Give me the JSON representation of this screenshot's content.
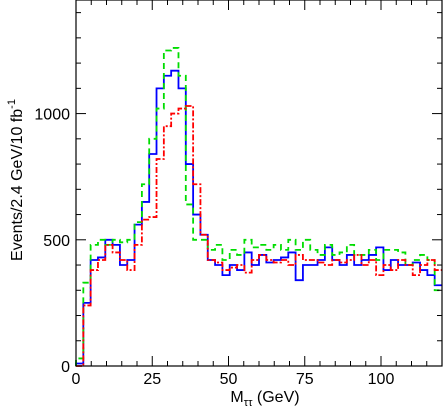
{
  "chart_data": {
    "type": "line",
    "step": true,
    "xlabel": "M",
    "xlabel_sub": "ττ",
    "xlabel_unit": " (GeV)",
    "ylabel_main": "Events/2.4 GeV/10 fb",
    "ylabel_sup": "-1",
    "xlim": [
      0,
      120
    ],
    "ylim": [
      0,
      1450
    ],
    "xticks": [
      0,
      25,
      50,
      75,
      100
    ],
    "yticks": [
      0,
      500,
      1000
    ],
    "bin_width": 2.4,
    "series": [
      {
        "color": "#0000ff",
        "dash": "",
        "values": [
          10,
          250,
          420,
          430,
          500,
          480,
          400,
          420,
          560,
          650,
          840,
          1100,
          1150,
          1170,
          1100,
          800,
          600,
          520,
          420,
          400,
          360,
          400,
          380,
          450,
          400,
          440,
          410,
          420,
          430,
          450,
          340,
          400,
          400,
          420,
          470,
          420,
          400,
          440,
          400,
          420,
          440,
          470,
          380,
          420,
          400,
          400,
          410,
          380,
          360,
          320
        ]
      },
      {
        "color": "#00dd00",
        "dash": "6,4",
        "values": [
          30,
          330,
          480,
          500,
          480,
          500,
          490,
          500,
          570,
          720,
          900,
          1020,
          1250,
          1260,
          1150,
          640,
          500,
          500,
          460,
          480,
          420,
          460,
          440,
          500,
          470,
          480,
          460,
          480,
          460,
          500,
          460,
          500,
          460,
          440,
          480,
          440,
          450,
          480,
          440,
          440,
          460,
          420,
          460,
          460,
          450,
          400,
          420,
          440,
          420,
          300
        ]
      },
      {
        "color": "#ff0000",
        "dash": "6,2,2,2",
        "values": [
          0,
          240,
          380,
          420,
          480,
          450,
          420,
          380,
          480,
          580,
          590,
          820,
          950,
          1000,
          1020,
          1030,
          720,
          520,
          420,
          410,
          380,
          390,
          400,
          370,
          420,
          440,
          420,
          410,
          420,
          400,
          440,
          420,
          420,
          410,
          400,
          420,
          410,
          420,
          440,
          400,
          420,
          360,
          400,
          380,
          420,
          400,
          360,
          400,
          420,
          380
        ]
      }
    ]
  }
}
